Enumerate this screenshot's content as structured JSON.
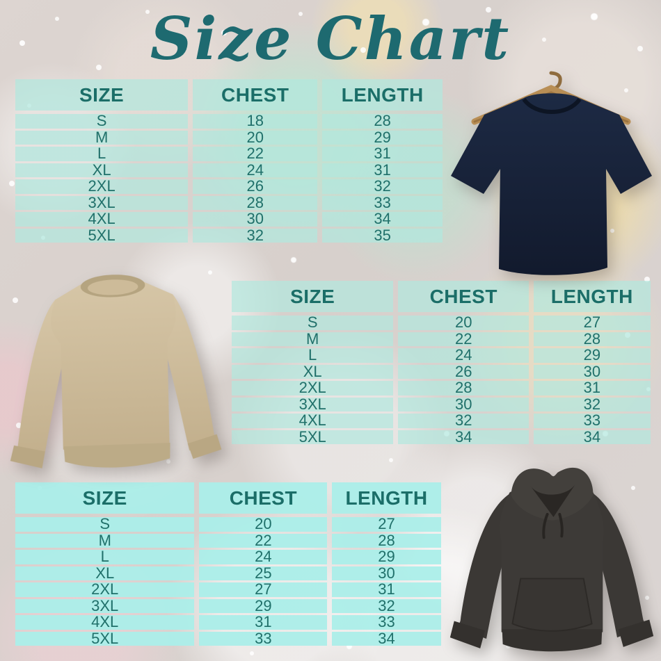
{
  "page": {
    "title": "Size Chart"
  },
  "colors": {
    "title_text": "#1e6a70",
    "table_header_text": "#1b6e68",
    "table_cell_text": "#20706a",
    "table_cell_bg": "#b2e8de",
    "hoodie_table_cell_bg": "#abeee9",
    "tshirt_fabric": "#19243a",
    "hanger_wood": "#b88e55",
    "sweatshirt_fabric": "#ccba98",
    "hoodie_fabric": "#3b3835"
  },
  "tables": [
    {
      "product": "t-shirt",
      "columns": [
        "SIZE",
        "CHEST",
        "LENGTH"
      ],
      "rows": [
        [
          "S",
          "18",
          "28"
        ],
        [
          "M",
          "20",
          "29"
        ],
        [
          "L",
          "22",
          "31"
        ],
        [
          "XL",
          "24",
          "31"
        ],
        [
          "2XL",
          "26",
          "32"
        ],
        [
          "3XL",
          "28",
          "33"
        ],
        [
          "4XL",
          "30",
          "34"
        ],
        [
          "5XL",
          "32",
          "35"
        ]
      ]
    },
    {
      "product": "sweatshirt",
      "columns": [
        "SIZE",
        "CHEST",
        "LENGTH"
      ],
      "rows": [
        [
          "S",
          "20",
          "27"
        ],
        [
          "M",
          "22",
          "28"
        ],
        [
          "L",
          "24",
          "29"
        ],
        [
          "XL",
          "26",
          "30"
        ],
        [
          "2XL",
          "28",
          "31"
        ],
        [
          "3XL",
          "30",
          "32"
        ],
        [
          "4XL",
          "32",
          "33"
        ],
        [
          "5XL",
          "34",
          "34"
        ]
      ]
    },
    {
      "product": "hoodie",
      "columns": [
        "SIZE",
        "CHEST",
        "LENGTH"
      ],
      "rows": [
        [
          "S",
          "20",
          "27"
        ],
        [
          "M",
          "22",
          "28"
        ],
        [
          "L",
          "24",
          "29"
        ],
        [
          "XL",
          "25",
          "30"
        ],
        [
          "2XL",
          "27",
          "31"
        ],
        [
          "3XL",
          "29",
          "32"
        ],
        [
          "4XL",
          "31",
          "33"
        ],
        [
          "5XL",
          "33",
          "34"
        ]
      ]
    }
  ],
  "images": [
    {
      "name": "tshirt-image",
      "alt": "navy t-shirt on wooden hanger"
    },
    {
      "name": "sweatshirt-image",
      "alt": "tan crewneck sweatshirt"
    },
    {
      "name": "hoodie-image",
      "alt": "charcoal pullover hoodie"
    }
  ]
}
